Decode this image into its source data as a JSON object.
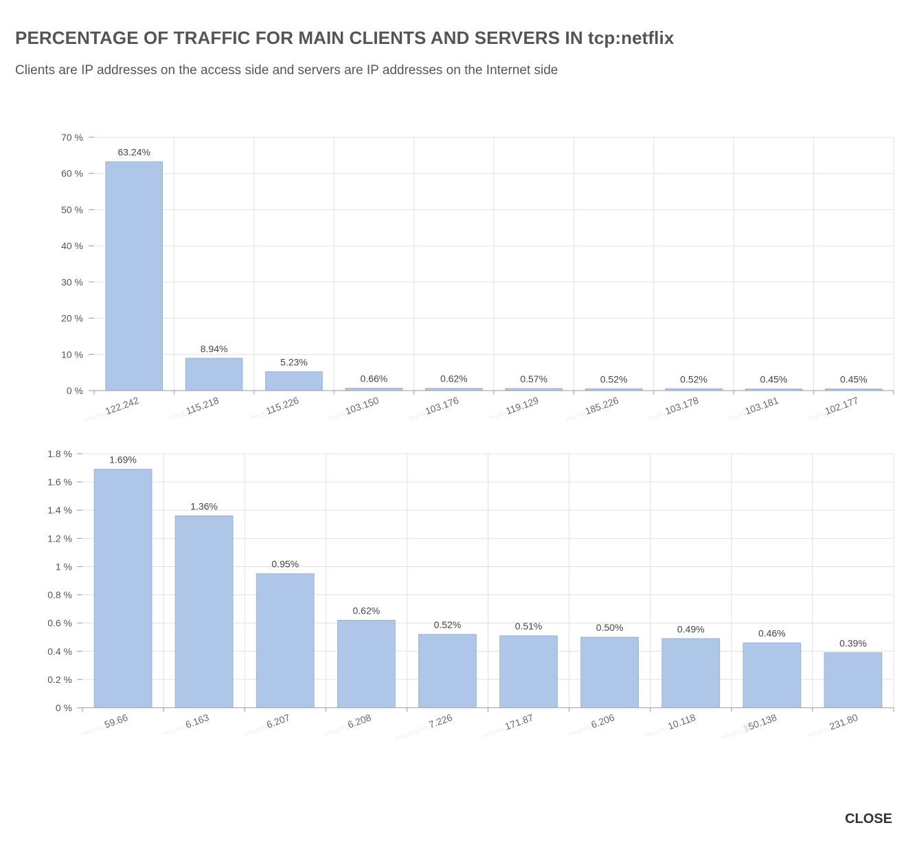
{
  "header": {
    "title": "PERCENTAGE OF TRAFFIC FOR MAIN CLIENTS AND SERVERS IN tcp:netflix",
    "subtitle": "Clients are IP addresses on the access side and servers are IP addresses on the Internet side"
  },
  "footer": {
    "close_label": "CLOSE"
  },
  "colors": {
    "bar": "#aec6e8",
    "bar_stroke": "#9ab4d8",
    "grid": "#e0e0e0",
    "axis": "#999999"
  },
  "chart_data": [
    {
      "type": "bar",
      "categories": [
        "···.···.122.242",
        "···.·.115.218",
        "···.·.115.226",
        "··.··.103.150",
        "··.··.103.176",
        "··.··.119.129",
        "··.···.185.226",
        "··.··.103.178",
        "··.··.103.181",
        "··.··.102.177"
      ],
      "category_visible_suffix": [
        "122.242",
        "115.218",
        "115.226",
        "103.150",
        "103.176",
        "119.129",
        "185.226",
        "103.178",
        "103.181",
        "102.177"
      ],
      "values": [
        63.24,
        8.94,
        5.23,
        0.66,
        0.62,
        0.57,
        0.52,
        0.52,
        0.45,
        0.45
      ],
      "value_labels": [
        "63.24%",
        "8.94%",
        "5.23%",
        "0.66%",
        "0.62%",
        "0.57%",
        "0.52%",
        "0.52%",
        "0.45%",
        "0.45%"
      ],
      "yticks": [
        0,
        10,
        20,
        30,
        40,
        50,
        60,
        70
      ],
      "ytick_labels": [
        "0 %",
        "10 %",
        "20 %",
        "30 %",
        "40 %",
        "50 %",
        "60 %",
        "70 %"
      ],
      "ylim": [
        0,
        70
      ],
      "grid": true,
      "title": "",
      "xlabel": "",
      "ylabel": ""
    },
    {
      "type": "bar",
      "categories": [
        "···.···.59.66",
        "···.···.6.163",
        "···.···.6.207",
        "···.···.6.208",
        "···.···.···.7.226",
        "···.···.171.87",
        "···.···.6.206",
        "···.···.10.118",
        "···.···.150.138",
        "···.···.231.80"
      ],
      "category_visible_suffix": [
        "59.66",
        "6.163",
        "6.207",
        "6.208",
        "7.226",
        "171.87",
        "6.206",
        "10.118",
        "50.138",
        "231.80"
      ],
      "values": [
        1.69,
        1.36,
        0.95,
        0.62,
        0.52,
        0.51,
        0.5,
        0.49,
        0.46,
        0.39
      ],
      "value_labels": [
        "1.69%",
        "1.36%",
        "0.95%",
        "0.62%",
        "0.52%",
        "0.51%",
        "0.50%",
        "0.49%",
        "0.46%",
        "0.39%"
      ],
      "yticks": [
        0,
        0.2,
        0.4,
        0.6,
        0.8,
        1,
        1.2,
        1.4,
        1.6,
        1.8
      ],
      "ytick_labels": [
        "0 %",
        "0.2 %",
        "0.4 %",
        "0.6 %",
        "0.8 %",
        "1 %",
        "1.2 %",
        "1.4 %",
        "1.6 %",
        "1.8 %"
      ],
      "ylim": [
        0,
        1.8
      ],
      "grid": true,
      "title": "",
      "xlabel": "",
      "ylabel": ""
    }
  ]
}
